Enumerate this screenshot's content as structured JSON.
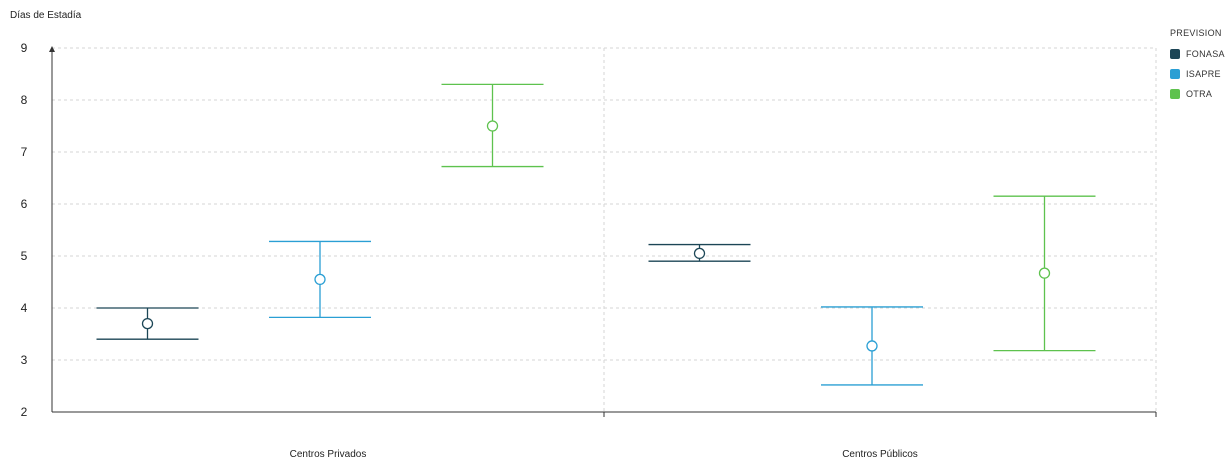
{
  "chart_data": {
    "type": "errorbar",
    "ylabel": "Días de Estadía",
    "xlabel": "",
    "ylim": [
      2,
      9
    ],
    "yticks": [
      2,
      3,
      4,
      5,
      6,
      7,
      8,
      9
    ],
    "grid": true,
    "legend_title": "PREVISION",
    "legend_position": "top-right",
    "categories": [
      "Centros Privados",
      "Centros Públicos"
    ],
    "series": [
      {
        "name": "FONASA",
        "color": "#1c4656",
        "points": [
          {
            "mean": 3.7,
            "low": 3.4,
            "high": 4.0
          },
          {
            "mean": 5.05,
            "low": 4.9,
            "high": 5.22
          }
        ]
      },
      {
        "name": "ISAPRE",
        "color": "#2a9fd4",
        "points": [
          {
            "mean": 4.55,
            "low": 3.82,
            "high": 5.28
          },
          {
            "mean": 3.27,
            "low": 2.52,
            "high": 4.02
          }
        ]
      },
      {
        "name": "OTRA",
        "color": "#5ec24e",
        "points": [
          {
            "mean": 7.5,
            "low": 6.72,
            "high": 8.3
          },
          {
            "mean": 4.67,
            "low": 3.18,
            "high": 6.15
          }
        ]
      }
    ]
  }
}
